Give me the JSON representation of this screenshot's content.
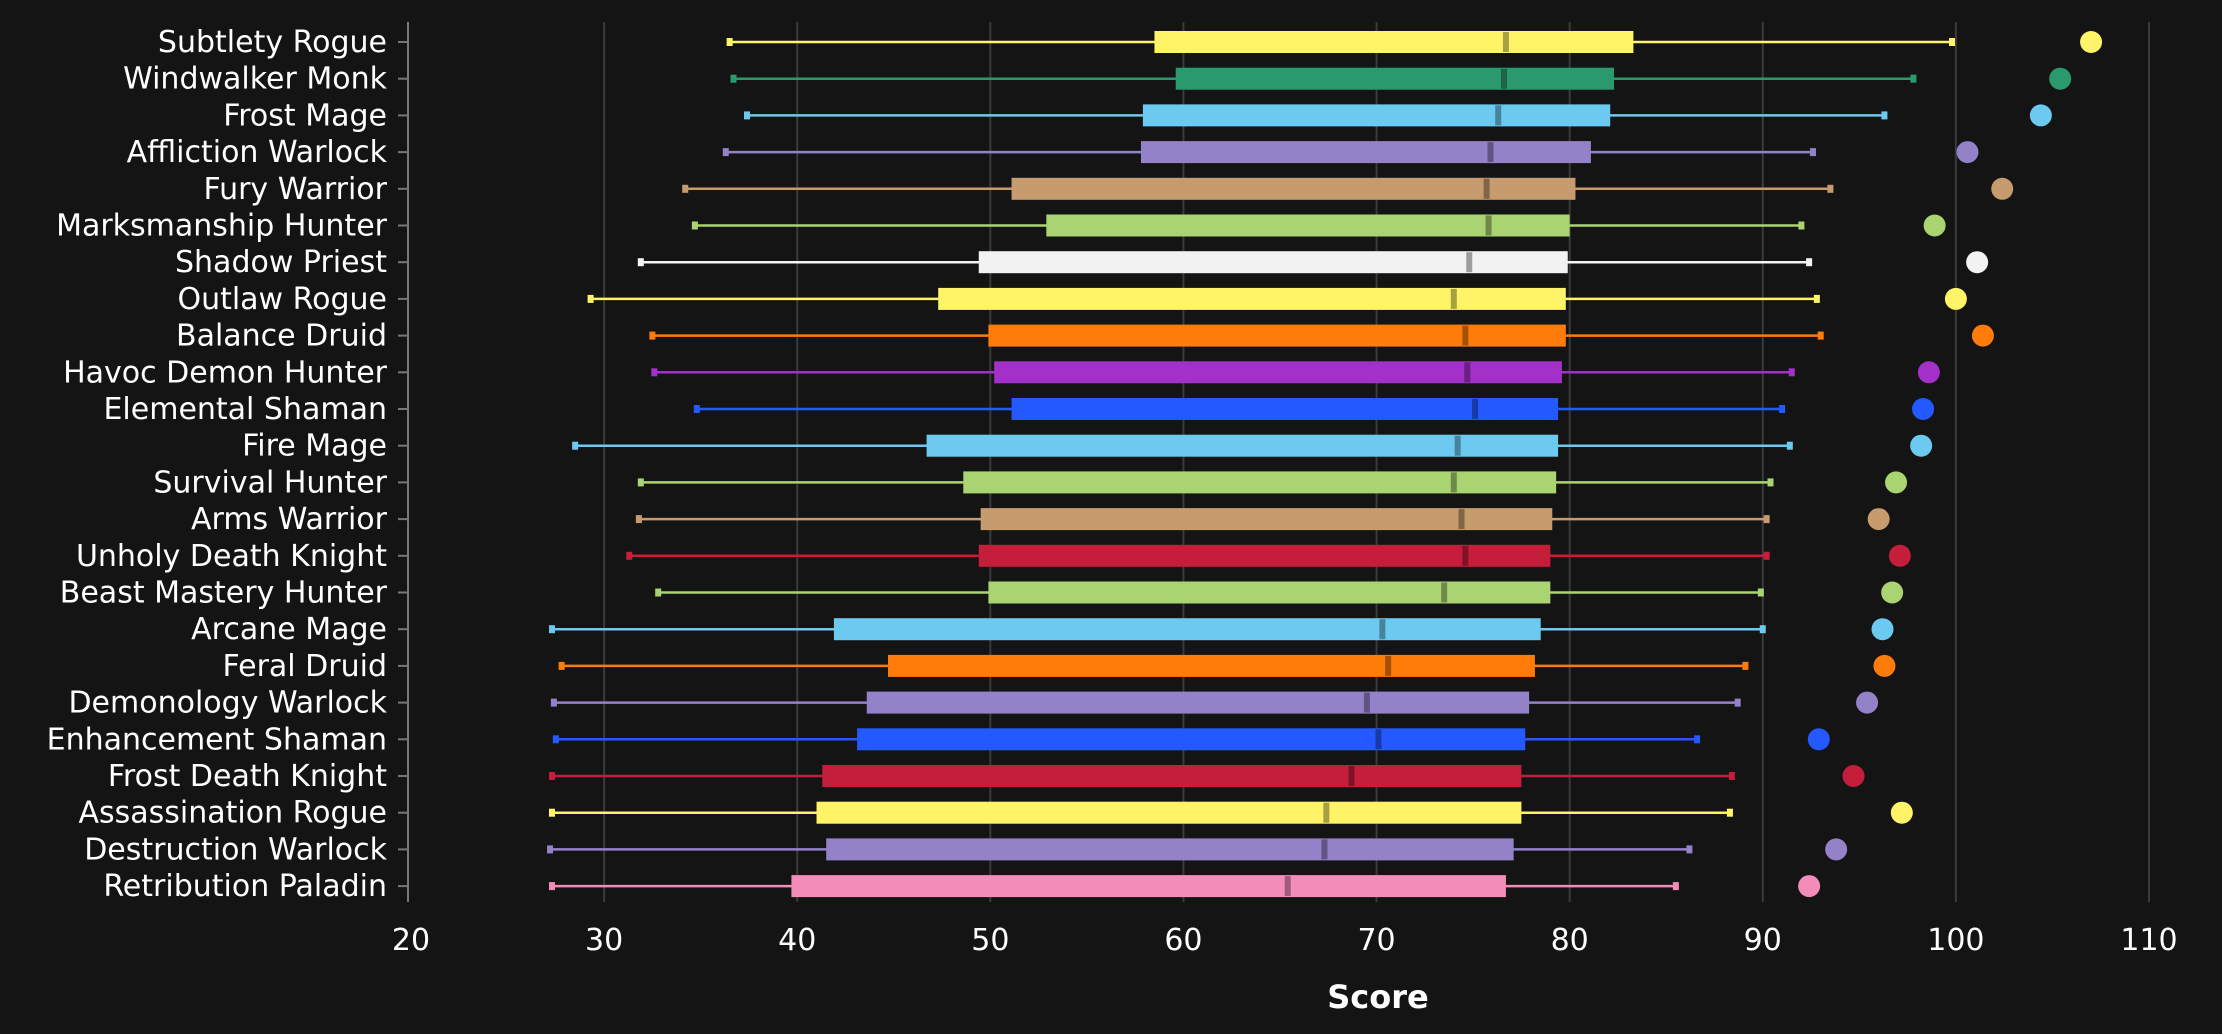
{
  "chart_data": {
    "type": "boxplot",
    "title": "",
    "xlabel": "Score",
    "ylabel": "",
    "xlim": [
      20,
      110
    ],
    "xticks": [
      20,
      30,
      40,
      50,
      60,
      70,
      80,
      90,
      100,
      110
    ],
    "grid": "vertical",
    "legend": "none",
    "series": [
      {
        "name": "Subtlety Rogue",
        "color": "#FFF468",
        "min": 36.5,
        "q1": 58.5,
        "median": 76.7,
        "q3": 83.3,
        "max": 99.8,
        "dot": 107.0
      },
      {
        "name": "Windwalker Monk",
        "color": "#2A9A6E",
        "min": 36.7,
        "q1": 59.6,
        "median": 76.6,
        "q3": 82.3,
        "max": 97.8,
        "dot": 105.4
      },
      {
        "name": "Frost Mage",
        "color": "#6CCAF1",
        "min": 37.4,
        "q1": 57.9,
        "median": 76.3,
        "q3": 82.1,
        "max": 96.3,
        "dot": 104.4
      },
      {
        "name": "Affliction Warlock",
        "color": "#9482C9",
        "min": 36.3,
        "q1": 57.8,
        "median": 75.9,
        "q3": 81.1,
        "max": 92.6,
        "dot": 100.6
      },
      {
        "name": "Fury Warrior",
        "color": "#C69B6D",
        "min": 34.2,
        "q1": 51.1,
        "median": 75.7,
        "q3": 80.3,
        "max": 93.5,
        "dot": 102.4
      },
      {
        "name": "Marksmanship Hunter",
        "color": "#AAD372",
        "min": 34.7,
        "q1": 52.9,
        "median": 75.8,
        "q3": 80.0,
        "max": 92.0,
        "dot": 98.9
      },
      {
        "name": "Shadow Priest",
        "color": "#F2F2F2",
        "min": 31.9,
        "q1": 49.4,
        "median": 74.8,
        "q3": 79.9,
        "max": 92.4,
        "dot": 101.1
      },
      {
        "name": "Outlaw Rogue",
        "color": "#FFF468",
        "min": 29.3,
        "q1": 47.3,
        "median": 74.0,
        "q3": 79.8,
        "max": 92.8,
        "dot": 100.0
      },
      {
        "name": "Balance Druid",
        "color": "#FF7C0A",
        "min": 32.5,
        "q1": 49.9,
        "median": 74.6,
        "q3": 79.8,
        "max": 93.0,
        "dot": 101.4
      },
      {
        "name": "Havoc Demon Hunter",
        "color": "#A330C9",
        "min": 32.6,
        "q1": 50.2,
        "median": 74.7,
        "q3": 79.6,
        "max": 91.5,
        "dot": 98.6
      },
      {
        "name": "Elemental Shaman",
        "color": "#2459FF",
        "min": 34.8,
        "q1": 51.1,
        "median": 75.1,
        "q3": 79.4,
        "max": 91.0,
        "dot": 98.3
      },
      {
        "name": "Fire Mage",
        "color": "#6CCAF1",
        "min": 28.5,
        "q1": 46.7,
        "median": 74.2,
        "q3": 79.4,
        "max": 91.4,
        "dot": 98.2
      },
      {
        "name": "Survival Hunter",
        "color": "#AAD372",
        "min": 31.9,
        "q1": 48.6,
        "median": 74.0,
        "q3": 79.3,
        "max": 90.4,
        "dot": 96.9
      },
      {
        "name": "Arms Warrior",
        "color": "#C69B6D",
        "min": 31.8,
        "q1": 49.5,
        "median": 74.4,
        "q3": 79.1,
        "max": 90.2,
        "dot": 96.0
      },
      {
        "name": "Unholy Death Knight",
        "color": "#C41E3A",
        "min": 31.3,
        "q1": 49.4,
        "median": 74.6,
        "q3": 79.0,
        "max": 90.2,
        "dot": 97.1
      },
      {
        "name": "Beast Mastery Hunter",
        "color": "#AAD372",
        "min": 32.8,
        "q1": 49.9,
        "median": 73.5,
        "q3": 79.0,
        "max": 89.9,
        "dot": 96.7
      },
      {
        "name": "Arcane Mage",
        "color": "#6CCAF1",
        "min": 27.3,
        "q1": 41.9,
        "median": 70.3,
        "q3": 78.5,
        "max": 90.0,
        "dot": 96.2
      },
      {
        "name": "Feral Druid",
        "color": "#FF7C0A",
        "min": 27.8,
        "q1": 44.7,
        "median": 70.6,
        "q3": 78.2,
        "max": 89.1,
        "dot": 96.3
      },
      {
        "name": "Demonology Warlock",
        "color": "#9482C9",
        "min": 27.4,
        "q1": 43.6,
        "median": 69.5,
        "q3": 77.9,
        "max": 88.7,
        "dot": 95.4
      },
      {
        "name": "Enhancement Shaman",
        "color": "#2459FF",
        "min": 27.5,
        "q1": 43.1,
        "median": 70.1,
        "q3": 77.7,
        "max": 86.6,
        "dot": 92.9
      },
      {
        "name": "Frost Death Knight",
        "color": "#C41E3A",
        "min": 27.3,
        "q1": 41.3,
        "median": 68.7,
        "q3": 77.5,
        "max": 88.4,
        "dot": 94.7
      },
      {
        "name": "Assassination Rogue",
        "color": "#FFF468",
        "min": 27.3,
        "q1": 41.0,
        "median": 67.4,
        "q3": 77.5,
        "max": 88.3,
        "dot": 97.2
      },
      {
        "name": "Destruction Warlock",
        "color": "#9482C9",
        "min": 27.2,
        "q1": 41.5,
        "median": 67.3,
        "q3": 77.1,
        "max": 86.2,
        "dot": 93.8
      },
      {
        "name": "Retribution Paladin",
        "color": "#F48CBA",
        "min": 27.3,
        "q1": 39.7,
        "median": 65.4,
        "q3": 76.7,
        "max": 85.5,
        "dot": 92.4
      }
    ]
  }
}
